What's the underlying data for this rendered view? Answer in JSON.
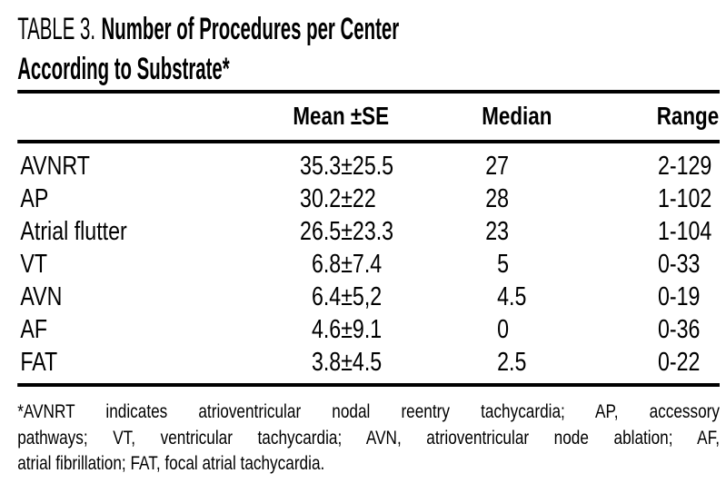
{
  "page": {
    "background_color": "#ffffff",
    "text_color": "#000000",
    "rule_color": "#000000",
    "kind": "scanned journal table"
  },
  "title": {
    "prefix": "TABLE 3.",
    "main": "Number of Procedures per Center",
    "line2": "According to Substrate*",
    "full": "TABLE 3. Number of Procedures per Center According to Substrate*"
  },
  "table": {
    "type": "table",
    "column_headers": {
      "label": "",
      "mean_se": "Mean ±SE",
      "median": "Median",
      "range": "Range"
    },
    "rows": [
      {
        "label": "AVNRT",
        "mean_se": "35.3±25.5",
        "mean_se_parts": [
          "35.3",
          "±25.5"
        ],
        "median": "27",
        "median_parts": [
          "27",
          ""
        ],
        "range": "2-129"
      },
      {
        "label": "AP",
        "mean_se": "30.2±22",
        "mean_se_parts": [
          "30.2",
          "±22"
        ],
        "median": "28",
        "median_parts": [
          "28",
          ""
        ],
        "range": "1-102"
      },
      {
        "label": "Atrial flutter",
        "mean_se": "26.5±23.3",
        "mean_se_parts": [
          "26.5",
          "±23.3"
        ],
        "median": "23",
        "median_parts": [
          "23",
          ""
        ],
        "range": "1-104"
      },
      {
        "label": "VT",
        "mean_se": "6.8±7.4",
        "mean_se_parts": [
          "6.8",
          "±7.4"
        ],
        "median": "5",
        "median_parts": [
          "5",
          ""
        ],
        "range": "0-33"
      },
      {
        "label": "AVN",
        "mean_se": "6.4±5,2",
        "mean_se_parts": [
          "6.4",
          "±5,2"
        ],
        "median": "4.5",
        "median_parts": [
          "4",
          ".5"
        ],
        "range": "0-19"
      },
      {
        "label": "AF",
        "mean_se": "4.6±9.1",
        "mean_se_parts": [
          "4.6",
          "±9.1"
        ],
        "median": "0",
        "median_parts": [
          "0",
          ""
        ],
        "range": "0-36"
      },
      {
        "label": "FAT",
        "mean_se": "3.8±4.5",
        "mean_se_parts": [
          "3.8",
          "±4.5"
        ],
        "median": "2.5",
        "median_parts": [
          "2",
          ".5"
        ],
        "range": "0-22"
      }
    ]
  },
  "footnote": {
    "lines": [
      "*AVNRT indicates atrioventricular nodal reentry tachycardia; AP, accessory",
      "pathways; VT, ventricular tachycardia; AVN, atrioventricular node ablation; AF,",
      "atrial fibrillation; FAT, focal atrial tachycardia."
    ],
    "full": "*AVNRT indicates atrioventricular nodal reentry tachycardia; AP, accessory pathways; VT, ventricular tachycardia; AVN, atrioventricular node ablation; AF, atrial fibrillation; FAT, focal atrial tachycardia."
  }
}
